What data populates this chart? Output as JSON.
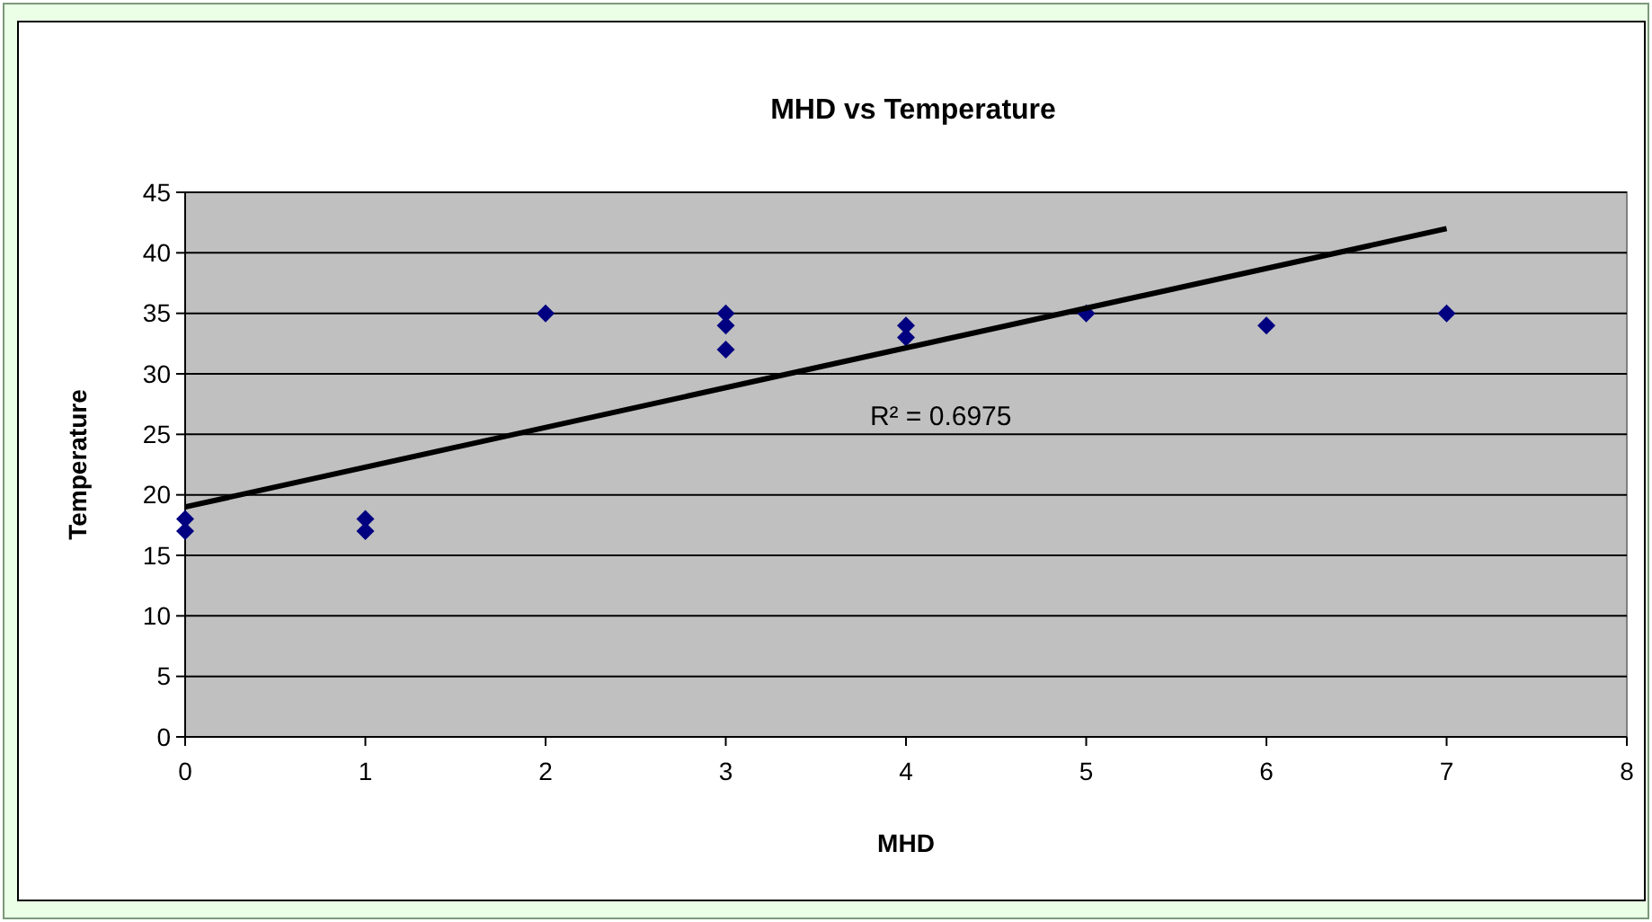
{
  "chart_data": {
    "type": "scatter",
    "title": "MHD vs Temperature",
    "xlabel": "MHD",
    "ylabel": "Temperature",
    "xlim": [
      0,
      8
    ],
    "xticks": [
      0,
      1,
      2,
      3,
      4,
      5,
      6,
      7,
      8
    ],
    "ylim": [
      0,
      45
    ],
    "yticks": [
      0,
      5,
      10,
      15,
      20,
      25,
      30,
      35,
      40,
      45
    ],
    "grid": "y",
    "marker": "diamond",
    "series": [
      {
        "color": "#000080",
        "x": [
          0,
          0,
          1,
          1,
          2,
          3,
          3,
          3,
          4,
          4,
          5,
          6,
          7
        ],
        "values": [
          18,
          17,
          18,
          17,
          35,
          35,
          34,
          32,
          34,
          33,
          35,
          34,
          35
        ]
      },
      {
        "type": "line",
        "color": "#000000",
        "x": [
          0,
          7
        ],
        "values": [
          19,
          42
        ],
        "marker": "none"
      }
    ],
    "annotations": [
      "R² = 0.6975"
    ]
  }
}
